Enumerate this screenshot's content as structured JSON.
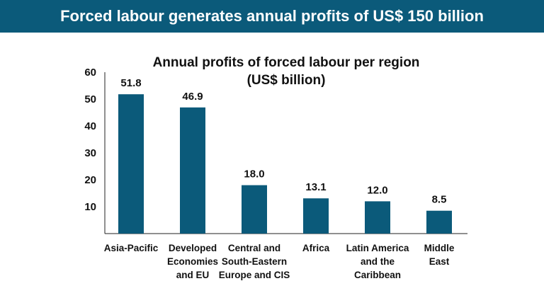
{
  "header": {
    "title": "Forced labour generates annual profits of US$ 150 billion"
  },
  "colors": {
    "banner": "#0b5a7a",
    "bar": "#0b5a7a"
  },
  "chart_data": {
    "type": "bar",
    "title": [
      "Annual profits of forced labour per region",
      "(US$ billion)"
    ],
    "xlabel": "",
    "ylabel": "",
    "ylim": [
      0,
      60
    ],
    "yticks": [
      10,
      20,
      30,
      40,
      50,
      60
    ],
    "grid": false,
    "categories": [
      [
        "Asia-Pacific"
      ],
      [
        "Developed",
        "Economies",
        "and EU"
      ],
      [
        "Central and",
        "South-Eastern",
        "Europe and CIS"
      ],
      [
        "Africa"
      ],
      [
        "Latin America",
        "and the",
        "Caribbean"
      ],
      [
        "Middle",
        "East"
      ]
    ],
    "values": [
      51.8,
      46.9,
      18.0,
      13.1,
      12.0,
      8.5
    ],
    "value_labels": [
      "51.8",
      "46.9",
      "18.0",
      "13.1",
      "12.0",
      "8.5"
    ]
  }
}
